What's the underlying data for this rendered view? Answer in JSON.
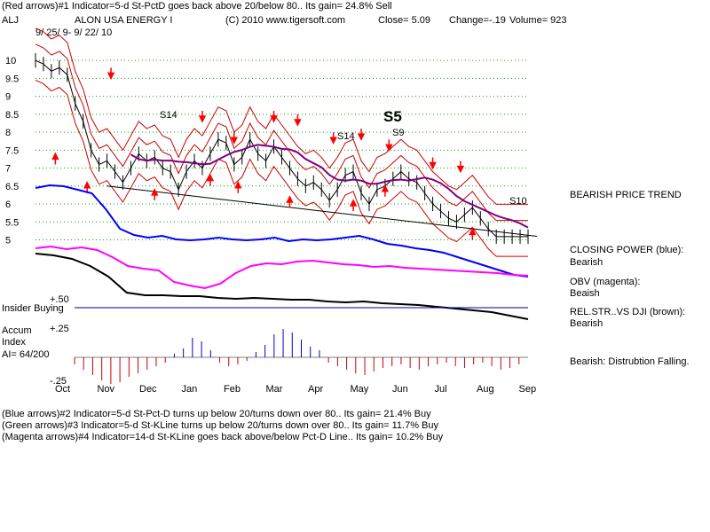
{
  "header": {
    "line1": "(Red arrows)#1 Indicator=5-d St-PctD goes back above 20/below 80.. Its gain= 24.8% Sell",
    "symbol": "ALJ",
    "company": "ALON USA ENERGY I",
    "copyright": "(C) 2010 www.tigersoft.com",
    "close": "Close=  5.09",
    "change": "Change=-.19",
    "volume": "Volume=  923",
    "daterange": "9/ 25/ 9- 9/ 22/ 10"
  },
  "footer": {
    "line1": "(Blue arrows)#2 Indicator=5-d St-Pct-D turns up below 20/turns down over 80.. Its gain= 21.4% Buy",
    "line2": "(Green arrows)#3 Indicator=5-d St-KLine turns up below 20/turns down over 80.. Its gain= 11.7% Buy",
    "line3": "(Magenta arrows)#4 Indicator=14-d St-KLine goes back above/below Pct-D Line.. Its gain= 10.2% Buy"
  },
  "sidebar": {
    "trend": "BEARISH PRICE TREND",
    "cp_label": "CLOSING POWER (blue):",
    "cp_value": "Bearish",
    "obv_label": "OBV (magenta):",
    "obv_value": "Beaish",
    "rs_label": "REL.STR..VS DJI (brown):",
    "rs_value": "Bearish",
    "accum_value": "Bearish: Distrubtion Falling."
  },
  "panel_labels": {
    "insider": "Insider Buying",
    "plus50": "+.50",
    "plus25": "+.25",
    "minus25": "-.25",
    "accum1": "Accum",
    "accum2": "Index",
    "ai": "AI= 64/200"
  },
  "signals": {
    "s14a": "S14",
    "s14b": "S14",
    "s5": "S5",
    "s9": "S9",
    "s10": "S10"
  },
  "colors": {
    "price": "#000000",
    "band": "#cc0000",
    "ma": "#800080",
    "closing_power": "#0000ff",
    "obv": "#ff00ff",
    "rel_str": "#000000",
    "accum_pos": "#0000cc",
    "accum_neg": "#cc0000",
    "grid": "#00aa00",
    "insider_line": "#000080"
  },
  "chart_data": {
    "type": "line",
    "title": "ALON USA ENERGY I",
    "y_ticks": [
      "10",
      "9.5",
      "9",
      "8.5",
      "8",
      "7.5",
      "7",
      "6.5",
      "6",
      "5.5",
      "5"
    ],
    "x_ticks": [
      "Oct",
      "Nov",
      "Dec",
      "Jan",
      "Feb",
      "Mar",
      "Apr",
      "May",
      "Jun",
      "Jul",
      "Aug",
      "Sep"
    ],
    "ylim": [
      4.8,
      10.3
    ],
    "price": {
      "name": "ALJ",
      "x": [
        0,
        4,
        8,
        12,
        16,
        20,
        24,
        28,
        32,
        36,
        40,
        44,
        48,
        52,
        56,
        60,
        64,
        68,
        72,
        76,
        80,
        84,
        88,
        92,
        96,
        100,
        104,
        108,
        112,
        116,
        120,
        124,
        128,
        132,
        136,
        140,
        144,
        148,
        152,
        156,
        160,
        164,
        168,
        172,
        176,
        180,
        184,
        188,
        192,
        196,
        200,
        204,
        208,
        212,
        216,
        220,
        224,
        228,
        232,
        236,
        240,
        244,
        248
      ],
      "y": [
        10.0,
        9.9,
        9.7,
        9.8,
        9.6,
        8.8,
        8.3,
        7.5,
        7.1,
        7.2,
        6.9,
        6.6,
        7.0,
        7.4,
        7.2,
        7.3,
        7.0,
        6.9,
        6.4,
        6.9,
        7.2,
        7.0,
        7.4,
        7.8,
        7.7,
        7.1,
        7.3,
        7.8,
        7.4,
        7.2,
        7.6,
        7.3,
        7.0,
        6.7,
        6.5,
        6.6,
        6.4,
        6.1,
        6.4,
        6.8,
        6.9,
        6.3,
        6.0,
        6.4,
        6.5,
        6.7,
        6.9,
        6.7,
        6.6,
        6.3,
        6.0,
        5.8,
        5.6,
        5.5,
        5.7,
        5.9,
        5.6,
        5.3,
        5.09,
        5.09,
        5.09,
        5.09,
        5.09
      ]
    },
    "signals_y": {
      "s14a": 8.4,
      "s14b": 7.8,
      "s5": 8.3,
      "s9": 7.9,
      "s10": 6.0
    },
    "red_arrows_down": [
      [
        38,
        9.5
      ],
      [
        84,
        8.3
      ],
      [
        100,
        7.7
      ],
      [
        120,
        8.3
      ],
      [
        132,
        8.2
      ],
      [
        150,
        7.7
      ],
      [
        164,
        7.8
      ],
      [
        178,
        7.5
      ],
      [
        200,
        7.0
      ],
      [
        214,
        6.9
      ]
    ],
    "red_arrows_up": [
      [
        10,
        7.4
      ],
      [
        26,
        6.6
      ],
      [
        60,
        6.4
      ],
      [
        88,
        6.8
      ],
      [
        102,
        6.6
      ],
      [
        128,
        6.2
      ],
      [
        160,
        6.1
      ],
      [
        176,
        6.5
      ],
      [
        220,
        5.3
      ]
    ],
    "insider_level": 0.5,
    "accum_ylim": [
      -0.25,
      0.5
    ]
  }
}
